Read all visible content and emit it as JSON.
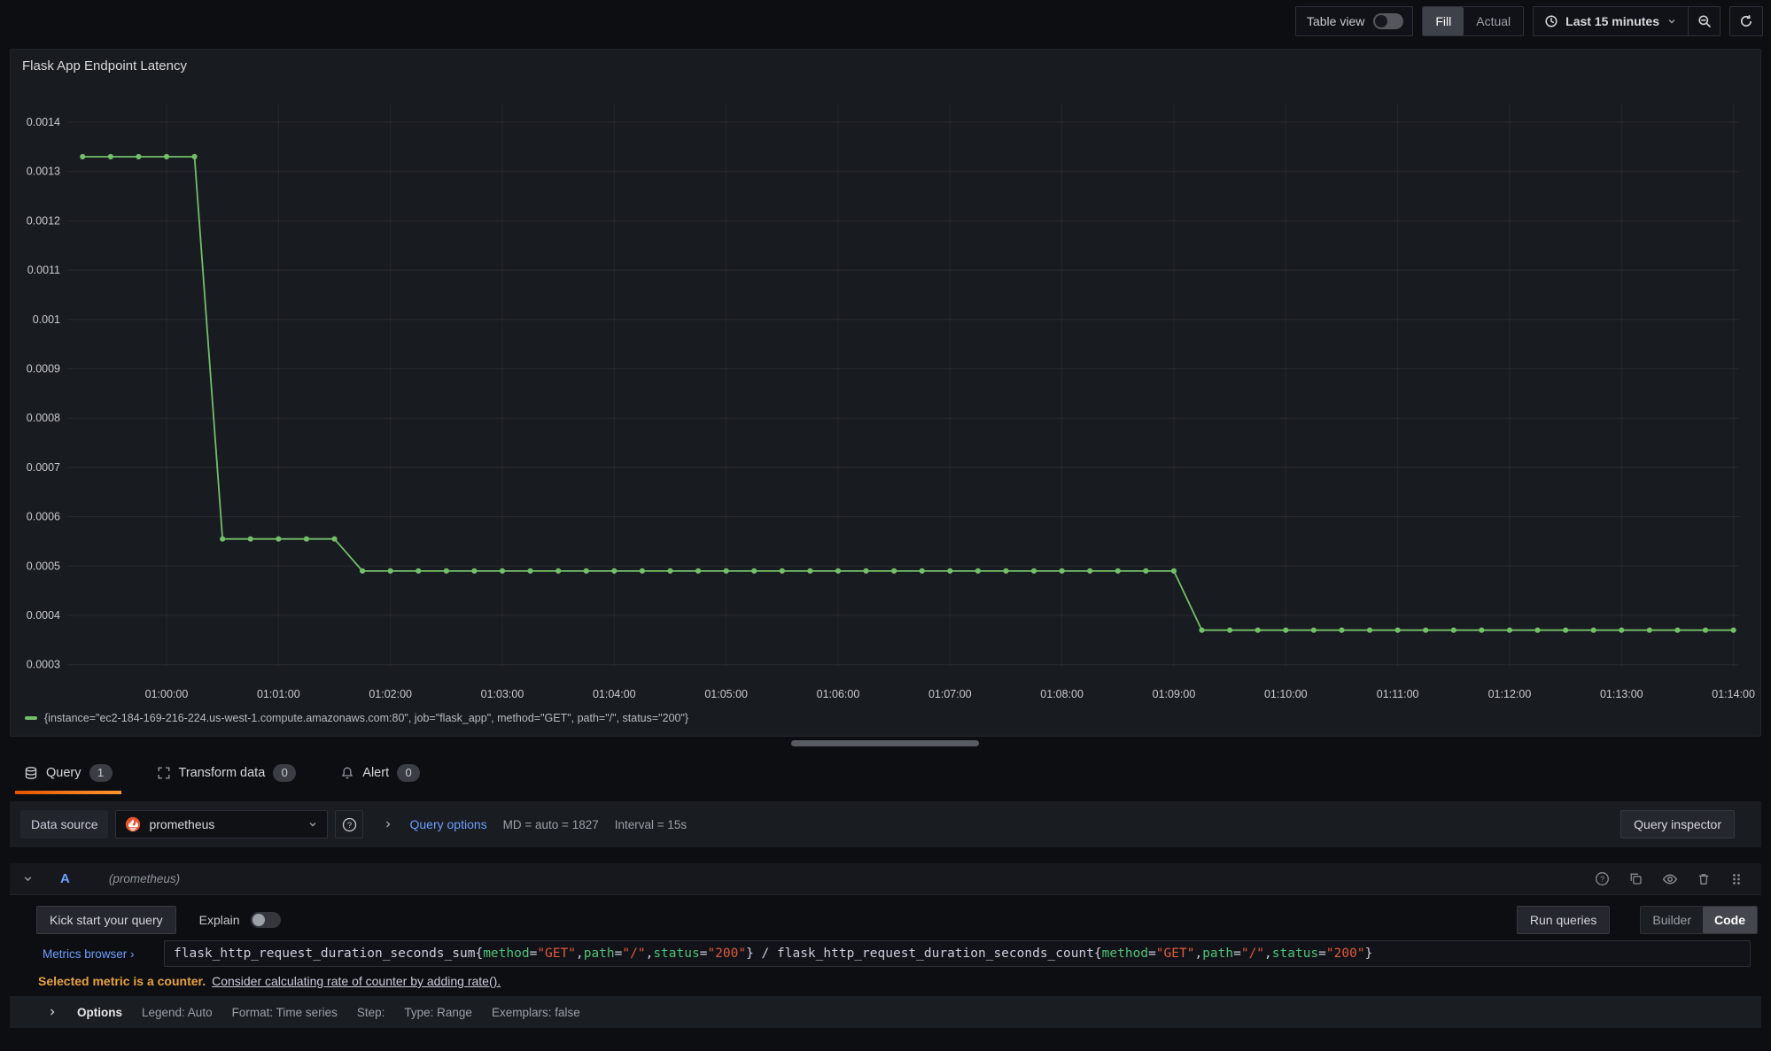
{
  "toolbar": {
    "table_view_label": "Table view",
    "fill_label": "Fill",
    "actual_label": "Actual",
    "time_range_label": "Last 15 minutes"
  },
  "panel": {
    "title": "Flask App Endpoint Latency"
  },
  "chart_data": {
    "type": "line",
    "title": "Flask App Endpoint Latency",
    "grid": true,
    "legend_position": "bottom",
    "x_ticks": [
      "01:00:00",
      "01:01:00",
      "01:02:00",
      "01:03:00",
      "01:04:00",
      "01:05:00",
      "01:06:00",
      "01:07:00",
      "01:08:00",
      "01:09:00",
      "01:10:00",
      "01:11:00",
      "01:12:00",
      "01:13:00",
      "01:14:00"
    ],
    "y_tick_labels": [
      "0.0014",
      "0.0013",
      "0.0012",
      "0.0011",
      "0.001",
      "0.0009",
      "0.0008",
      "0.0007",
      "0.0006",
      "0.0005",
      "0.0004",
      "0.0003"
    ],
    "y_max_tick": 0.0014,
    "y_tick_step": 0.0001,
    "ylim": [
      0.00028,
      0.00144
    ],
    "series": [
      {
        "name": "{instance=\"ec2-184-169-216-224.us-west-1.compute.amazonaws.com:80\", job=\"flask_app\", method=\"GET\", path=\"/\", status=\"200\"}",
        "color": "#73bf69",
        "start_offset_seconds": -45,
        "step_seconds": 15,
        "values": [
          0.00133,
          0.00133,
          0.00133,
          0.00133,
          0.00133,
          0.000555,
          0.000555,
          0.000555,
          0.000555,
          0.000555,
          0.00049,
          0.00049,
          0.00049,
          0.00049,
          0.00049,
          0.00049,
          0.00049,
          0.00049,
          0.00049,
          0.00049,
          0.00049,
          0.00049,
          0.00049,
          0.00049,
          0.00049,
          0.00049,
          0.00049,
          0.00049,
          0.00049,
          0.00049,
          0.00049,
          0.00049,
          0.00049,
          0.00049,
          0.00049,
          0.00049,
          0.00049,
          0.00049,
          0.00049,
          0.00049,
          0.00037,
          0.00037,
          0.00037,
          0.00037,
          0.00037,
          0.00037,
          0.00037,
          0.00037,
          0.00037,
          0.00037,
          0.00037,
          0.00037,
          0.00037,
          0.00037,
          0.00037,
          0.00037,
          0.00037,
          0.00037,
          0.00037,
          0.00037
        ]
      }
    ]
  },
  "tabs": [
    {
      "label": "Query",
      "badge": "1"
    },
    {
      "label": "Transform data",
      "badge": "0"
    },
    {
      "label": "Alert",
      "badge": "0"
    }
  ],
  "datasource_row": {
    "label": "Data source",
    "value": "prometheus",
    "query_options_label": "Query options",
    "md_text": "MD = auto = 1827",
    "interval_text": "Interval = 15s",
    "inspector_label": "Query inspector"
  },
  "query_row": {
    "ref_id": "A",
    "datasource_hint": "(prometheus)"
  },
  "query_toolbar": {
    "kick_start_label": "Kick start your query",
    "explain_label": "Explain",
    "run_queries_label": "Run queries",
    "builder_label": "Builder",
    "code_label": "Code"
  },
  "editor": {
    "metrics_browser_label": "Metrics browser ›",
    "query_segments": [
      {
        "t": "flask_http_request_duration_seconds_sum{",
        "c": "plain"
      },
      {
        "t": "method",
        "c": "label"
      },
      {
        "t": "=",
        "c": "plain"
      },
      {
        "t": "\"GET\"",
        "c": "string"
      },
      {
        "t": ",",
        "c": "plain"
      },
      {
        "t": "path",
        "c": "label"
      },
      {
        "t": "=",
        "c": "plain"
      },
      {
        "t": "\"/\"",
        "c": "string"
      },
      {
        "t": ",",
        "c": "plain"
      },
      {
        "t": "status",
        "c": "label"
      },
      {
        "t": "=",
        "c": "plain"
      },
      {
        "t": "\"200\"",
        "c": "string"
      },
      {
        "t": "} / flask_http_request_duration_seconds_count{",
        "c": "plain"
      },
      {
        "t": "method",
        "c": "label"
      },
      {
        "t": "=",
        "c": "plain"
      },
      {
        "t": "\"GET\"",
        "c": "string"
      },
      {
        "t": ",",
        "c": "plain"
      },
      {
        "t": "path",
        "c": "label"
      },
      {
        "t": "=",
        "c": "plain"
      },
      {
        "t": "\"/\"",
        "c": "string"
      },
      {
        "t": ",",
        "c": "plain"
      },
      {
        "t": "status",
        "c": "label"
      },
      {
        "t": "=",
        "c": "plain"
      },
      {
        "t": "\"200\"",
        "c": "string"
      },
      {
        "t": "}",
        "c": "plain"
      }
    ]
  },
  "warning": {
    "bold": "Selected metric is a counter.",
    "link": "Consider calculating rate of counter by adding rate()."
  },
  "options_row": {
    "options_label": "Options",
    "items": [
      "Legend: Auto",
      "Format: Time series",
      "Step:",
      "Type: Range",
      "Exemplars: false"
    ]
  },
  "colors": {
    "series_green": "#73bf69",
    "accent_orange": "#ff780a",
    "link_blue": "#6e9fff",
    "warning_orange": "#e9a23c",
    "prometheus_orange": "#e6522c",
    "background": "#111217",
    "panel_background": "#181b1f"
  }
}
